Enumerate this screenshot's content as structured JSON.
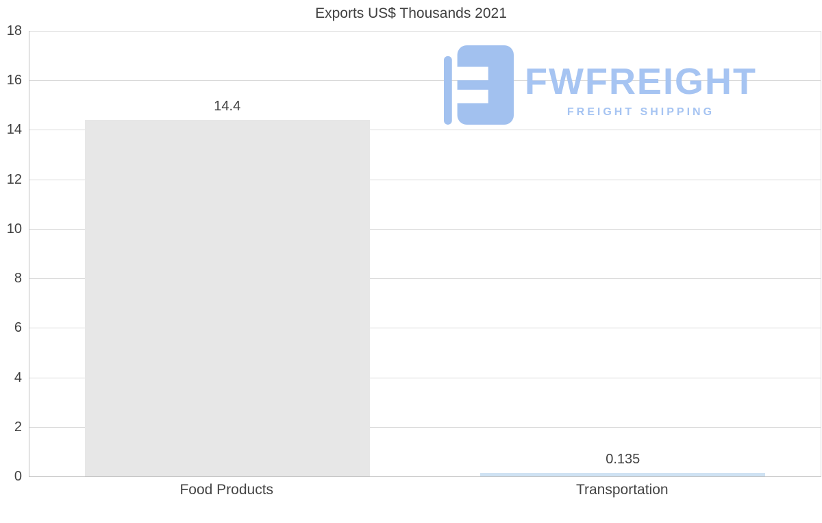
{
  "chart_data": {
    "type": "bar",
    "title": "Exports US$ Thousands 2021",
    "categories": [
      "Food Products",
      "Transportation"
    ],
    "values": [
      14.4,
      0.135
    ],
    "value_labels": [
      "14.4",
      "0.135"
    ],
    "bar_colors": [
      "#e7e7e7",
      "#cfe2f3"
    ],
    "xlabel": "",
    "ylabel": "",
    "ylim": [
      0,
      18
    ],
    "yticks": [
      0,
      2,
      4,
      6,
      8,
      10,
      12,
      14,
      16,
      18
    ],
    "grid": "horizontal",
    "legend": "none"
  },
  "logo": {
    "name": "FWFREIGHT",
    "subtitle": "FREIGHT SHIPPING"
  },
  "colors": {
    "brand": "#a6c4f2",
    "grid": "#d9d9d9",
    "axis": "#bfbfbf",
    "text": "#404040",
    "xlabel": "#444444"
  }
}
